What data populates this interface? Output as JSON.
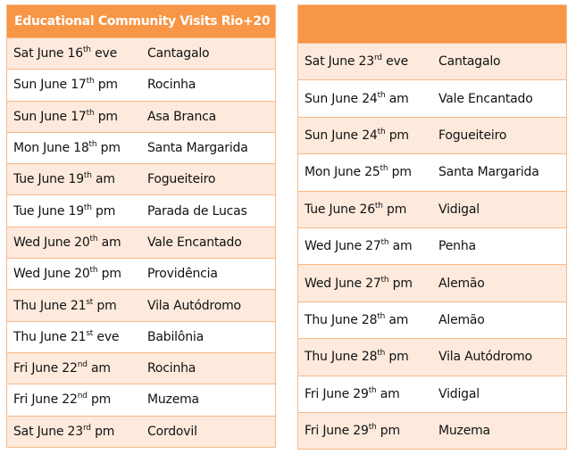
{
  "title": "Educational Community Visits Rio+20",
  "right_title": "",
  "colors": {
    "header": "#f79646",
    "row_shade": "#fdeadd",
    "border": "#f8b887"
  },
  "left": [
    {
      "d": "Sat June 16",
      "s": "th",
      "t": "eve",
      "p": "Cantagalo"
    },
    {
      "d": "Sun June 17",
      "s": "th",
      "t": "pm",
      "p": "Rocinha"
    },
    {
      "d": "Sun June 17",
      "s": "th",
      "t": "pm",
      "p": "Asa Branca"
    },
    {
      "d": "Mon June 18",
      "s": "th",
      "t": "pm",
      "p": "Santa Margarida"
    },
    {
      "d": "Tue June 19",
      "s": "th",
      "t": "am",
      "p": "Fogueiteiro"
    },
    {
      "d": "Tue June 19",
      "s": "th",
      "t": "pm",
      "p": "Parada de Lucas"
    },
    {
      "d": "Wed June 20",
      "s": "th",
      "t": "am",
      "p": "Vale Encantado"
    },
    {
      "d": "Wed June 20",
      "s": "th",
      "t": "pm",
      "p": "Providência"
    },
    {
      "d": "Thu June 21",
      "s": "st",
      "t": "pm",
      "p": "Vila Autódromo"
    },
    {
      "d": "Thu June 21",
      "s": "st",
      "t": "eve",
      "p": "Babilônia"
    },
    {
      "d": "Fri June 22",
      "s": "nd",
      "t": "am",
      "p": "Rocinha"
    },
    {
      "d": "Fri June 22",
      "s": "nd",
      "t": "pm",
      "p": "Muzema"
    },
    {
      "d": "Sat June 23",
      "s": "rd",
      "t": "pm",
      "p": "Cordovil"
    }
  ],
  "right": [
    {
      "d": "Sat June 23",
      "s": "rd",
      "t": "eve",
      "p": "Cantagalo"
    },
    {
      "d": "Sun June 24",
      "s": "th",
      "t": "am",
      "p": "Vale Encantado"
    },
    {
      "d": "Sun June 24",
      "s": "th",
      "t": "pm",
      "p": "Fogueiteiro"
    },
    {
      "d": "Mon June 25",
      "s": "th",
      "t": "pm",
      "p": "Santa Margarida"
    },
    {
      "d": "Tue June 26",
      "s": "th",
      "t": "pm",
      "p": "Vidigal"
    },
    {
      "d": "Wed June 27",
      "s": "th",
      "t": "am",
      "p": "Penha"
    },
    {
      "d": "Wed June 27",
      "s": "th",
      "t": "pm",
      "p": "Alemão"
    },
    {
      "d": "Thu June 28",
      "s": "th",
      "t": "am",
      "p": "Alemão"
    },
    {
      "d": "Thu June 28",
      "s": "th",
      "t": "pm",
      "p": "Vila Autódromo"
    },
    {
      "d": "Fri June 29",
      "s": "th",
      "t": "am",
      "p": "Vidigal"
    },
    {
      "d": "Fri June 29",
      "s": "th",
      "t": "pm",
      "p": "Muzema"
    }
  ]
}
